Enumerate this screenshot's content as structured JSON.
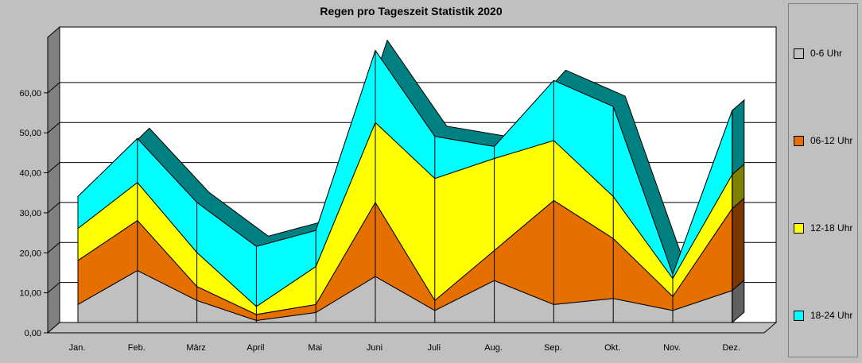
{
  "chart_data": {
    "type": "area",
    "stacked": true,
    "title": "Regen pro Tageszeit Statistik 2020",
    "categories": [
      "Jan.",
      "Feb.",
      "März",
      "April",
      "Mai",
      "Juni",
      "Juli",
      "Aug.",
      "Sep.",
      "Okt.",
      "Nov.",
      "Dez."
    ],
    "y_ticks": [
      "0,00",
      "10,00",
      "20,00",
      "30,00",
      "40,00",
      "50,00",
      "60,00"
    ],
    "ylim": [
      0,
      70
    ],
    "grid": true,
    "legend_position": "right",
    "series": [
      {
        "name": "0-6 Uhr",
        "color": "#c0c0c0",
        "values": [
          4.5,
          13,
          5.5,
          0.5,
          2.5,
          11.5,
          3,
          10.5,
          4.5,
          6,
          3,
          8
        ]
      },
      {
        "name": "06-12 Uhr",
        "color": "#e57000",
        "values": [
          11,
          12.5,
          3.5,
          1.5,
          2,
          18.5,
          2.5,
          7.5,
          26,
          15,
          3.5,
          20.5
        ]
      },
      {
        "name": "12-18 Uhr",
        "color": "#ffff00",
        "values": [
          8,
          9.5,
          8.5,
          2,
          9.5,
          20,
          30.5,
          23,
          15,
          10.5,
          4.5,
          8.5
        ]
      },
      {
        "name": "18-24 Uhr",
        "color": "#00ffff",
        "values": [
          8,
          11,
          12.5,
          15,
          9,
          18,
          10.5,
          3,
          15,
          22.5,
          1,
          16
        ]
      }
    ]
  }
}
